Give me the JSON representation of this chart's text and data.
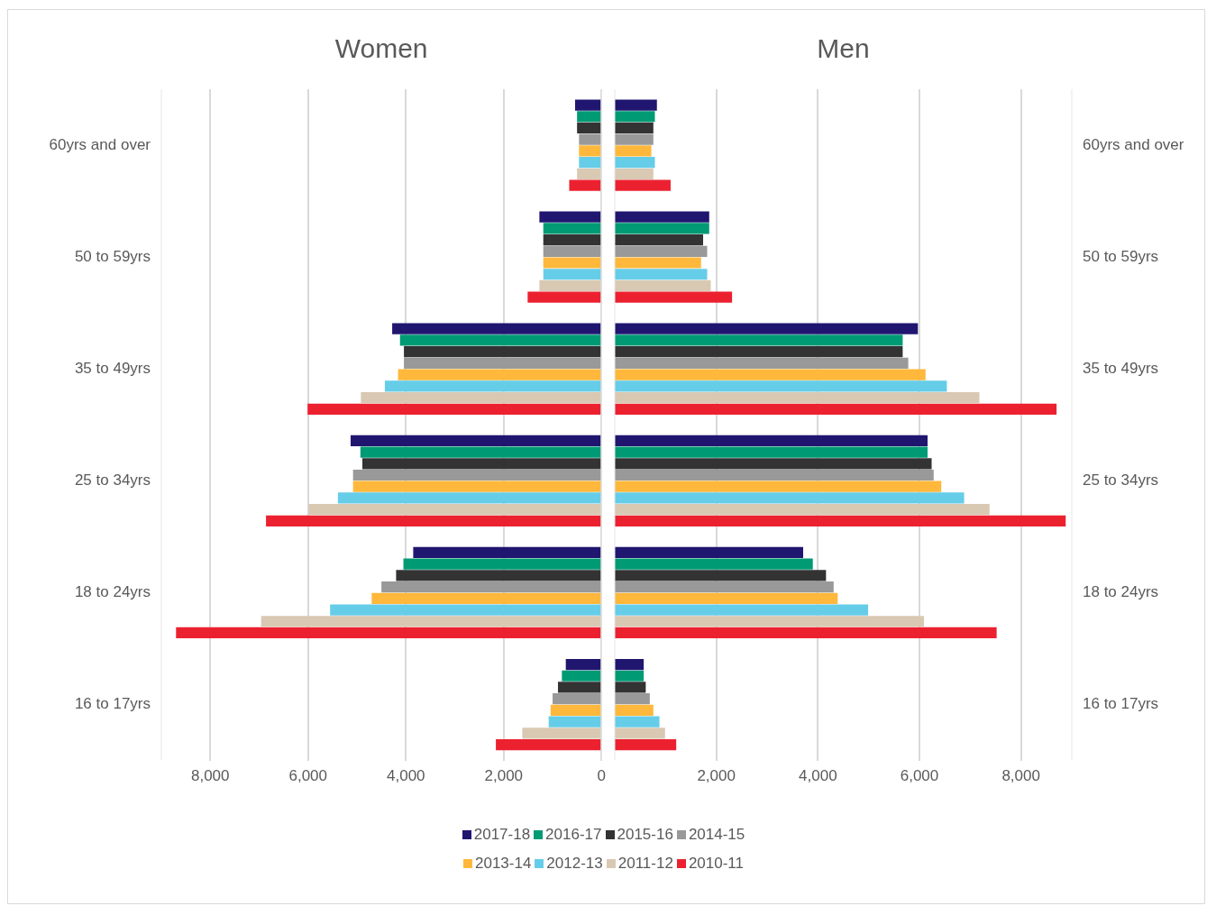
{
  "chart_data": [
    {
      "type": "bar",
      "orientation": "horizontal",
      "title": "Women",
      "categories": [
        "60yrs and over",
        "50 to 59yrs",
        "35 to 49yrs",
        "25 to 34yrs",
        "18 to 24yrs",
        "16 to 17yrs"
      ],
      "xlim": [
        9000,
        0
      ],
      "xticks": [
        {
          "value": 8000,
          "label": "8,000"
        },
        {
          "value": 6000,
          "label": "6,000"
        },
        {
          "value": 4000,
          "label": "4,000"
        },
        {
          "value": 2000,
          "label": "2,000"
        },
        0
      ],
      "grid": "x",
      "legend": "bottom",
      "series": [
        {
          "name": "2017-18",
          "color": "#201670",
          "values": [
            540,
            1270,
            4280,
            5130,
            3850,
            730
          ]
        },
        {
          "name": "2016-17",
          "color": "#009a74",
          "values": [
            500,
            1190,
            4120,
            4930,
            4050,
            810
          ]
        },
        {
          "name": "2015-16",
          "color": "#333333",
          "values": [
            500,
            1190,
            4040,
            4890,
            4200,
            890
          ]
        },
        {
          "name": "2014-15",
          "color": "#999999",
          "values": [
            460,
            1190,
            4040,
            5080,
            4500,
            1000
          ]
        },
        {
          "name": "2013-14",
          "color": "#ffb83b",
          "values": [
            460,
            1190,
            4160,
            5080,
            4700,
            1040
          ]
        },
        {
          "name": "2012-13",
          "color": "#66cde8",
          "values": [
            460,
            1190,
            4430,
            5390,
            5550,
            1080
          ]
        },
        {
          "name": "2011-12",
          "color": "#d9c9b3",
          "values": [
            500,
            1270,
            4920,
            5990,
            6960,
            1620
          ]
        },
        {
          "name": "2010-11",
          "color": "#ec2130",
          "values": [
            660,
            1510,
            6010,
            6860,
            8700,
            2160
          ]
        }
      ]
    },
    {
      "type": "bar",
      "orientation": "horizontal",
      "title": "Men",
      "categories": [
        "60yrs and over",
        "50 to 59yrs",
        "35 to 49yrs",
        "25 to 34yrs",
        "18 to 24yrs",
        "16 to 17yrs"
      ],
      "xlim": [
        0,
        9000
      ],
      "xticks": [
        {
          "value": 2000,
          "label": "2,000"
        },
        {
          "value": 4000,
          "label": "4,000"
        },
        {
          "value": 6000,
          "label": "6,000"
        },
        {
          "value": 8000,
          "label": "8,000"
        }
      ],
      "grid": "x",
      "series": [
        {
          "name": "2017-18",
          "color": "#201670",
          "values": [
            830,
            1860,
            5970,
            6160,
            3710,
            570
          ]
        },
        {
          "name": "2016-17",
          "color": "#009a74",
          "values": [
            790,
            1860,
            5670,
            6160,
            3900,
            570
          ]
        },
        {
          "name": "2015-16",
          "color": "#333333",
          "values": [
            760,
            1740,
            5670,
            6240,
            4160,
            610
          ]
        },
        {
          "name": "2014-15",
          "color": "#999999",
          "values": [
            760,
            1820,
            5780,
            6280,
            4310,
            690
          ]
        },
        {
          "name": "2013-14",
          "color": "#ffb83b",
          "values": [
            720,
            1700,
            6120,
            6430,
            4390,
            760
          ]
        },
        {
          "name": "2012-13",
          "color": "#66cde8",
          "values": [
            790,
            1820,
            6540,
            6880,
            4990,
            880
          ]
        },
        {
          "name": "2011-12",
          "color": "#d9c9b3",
          "values": [
            760,
            1890,
            7180,
            7380,
            6090,
            990
          ]
        },
        {
          "name": "2010-11",
          "color": "#ec2130",
          "values": [
            1100,
            2310,
            8700,
            8880,
            7520,
            1210
          ]
        }
      ]
    }
  ]
}
